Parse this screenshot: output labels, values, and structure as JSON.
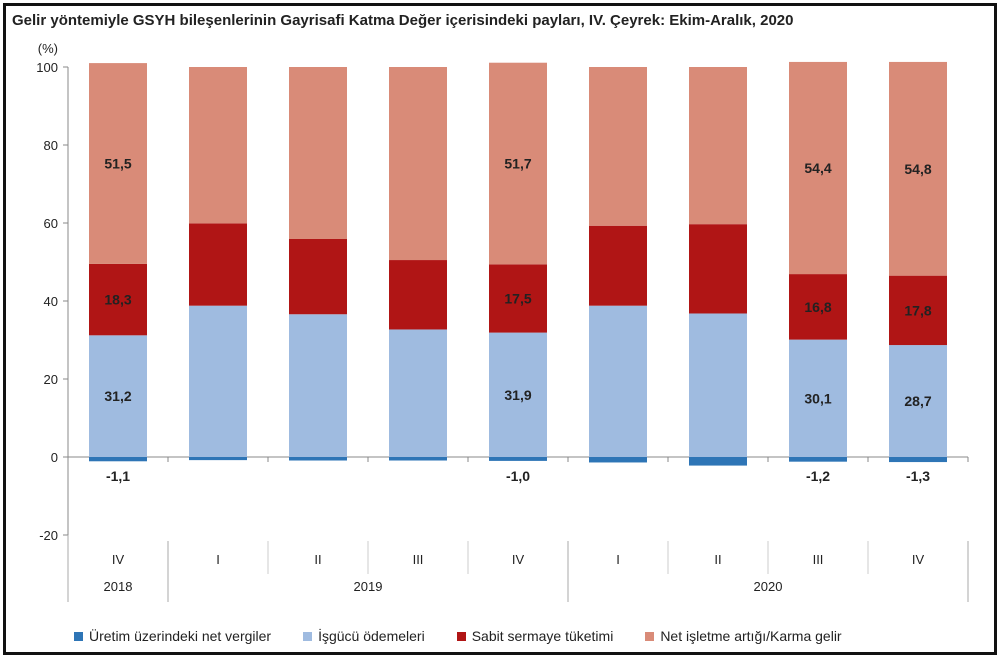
{
  "chart_data": {
    "type": "bar",
    "stacked": true,
    "title": "Gelir yöntemiyle GSYH bileşenlerinin Gayrisafi Katma Değer içerisindeki payları, IV. Çeyrek: Ekim-Aralık, 2020",
    "ylabel": "(%)",
    "ylim": [
      -20,
      100
    ],
    "yticks": [
      -20,
      0,
      20,
      40,
      60,
      80,
      100
    ],
    "categories": [
      "IV",
      "I",
      "II",
      "III",
      "IV",
      "I",
      "II",
      "III",
      "IV"
    ],
    "year_groups": [
      {
        "label": "2018",
        "span": 1
      },
      {
        "label": "2019",
        "span": 4
      },
      {
        "label": "2020",
        "span": 4
      }
    ],
    "legend_position": "bottom",
    "series": [
      {
        "name": "Üretim üzerindeki net vergiler",
        "color": "#2e75b6",
        "values": [
          -1.1,
          -0.8,
          -0.9,
          -0.9,
          -1.0,
          -1.4,
          -2.2,
          -1.2,
          -1.3
        ],
        "labels": [
          "-1,1",
          "",
          "",
          "",
          "-1,0",
          "",
          "",
          "-1,2",
          "-1,3"
        ]
      },
      {
        "name": "İşgücü ödemeleri",
        "color": "#9fbbe0",
        "values": [
          31.2,
          38.8,
          36.6,
          32.7,
          31.9,
          38.8,
          36.8,
          30.1,
          28.7
        ],
        "labels": [
          "31,2",
          "",
          "",
          "",
          "31,9",
          "",
          "",
          "30,1",
          "28,7"
        ]
      },
      {
        "name": "Sabit sermaye tüketimi",
        "color": "#b01515",
        "values": [
          18.3,
          21.1,
          19.3,
          17.8,
          17.5,
          20.5,
          22.9,
          16.8,
          17.8
        ],
        "labels": [
          "18,3",
          "",
          "",
          "",
          "17,5",
          "",
          "",
          "16,8",
          "17,8"
        ]
      },
      {
        "name": "Net işletme artığı/Karma gelir",
        "color": "#d98b78",
        "values": [
          51.5,
          40.1,
          44.1,
          49.5,
          51.7,
          40.7,
          40.3,
          54.4,
          54.8
        ],
        "labels": [
          "51,5",
          "",
          "",
          "",
          "51,7",
          "",
          "",
          "54,4",
          "54,8"
        ]
      }
    ]
  }
}
